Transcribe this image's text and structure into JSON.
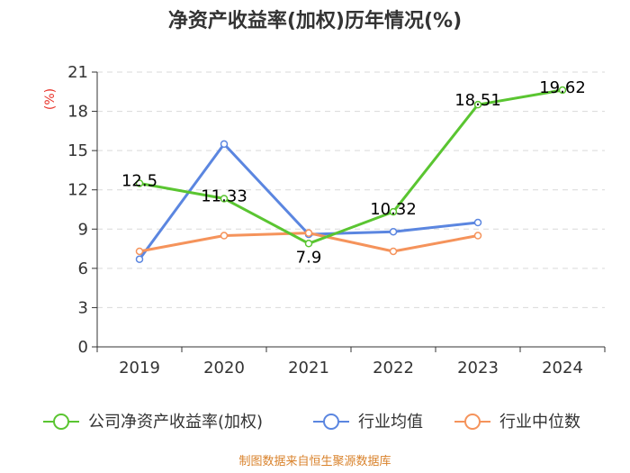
{
  "chart_data": {
    "type": "line",
    "title": "净资产收益率(加权)历年情况(%)",
    "ylabel": "(%)",
    "xlabel": "",
    "categories": [
      "2019",
      "2020",
      "2021",
      "2022",
      "2023",
      "2024"
    ],
    "ylim": [
      0,
      21
    ],
    "yticks": [
      0,
      3,
      6,
      9,
      12,
      15,
      18,
      21
    ],
    "series": [
      {
        "name": "公司净资产收益率(加权)",
        "color": "#5ac531",
        "values": [
          12.5,
          11.33,
          7.9,
          10.32,
          18.51,
          19.62
        ],
        "labels": [
          "12.5",
          "11.33",
          "7.9",
          "10.32",
          "18.51",
          "19.62"
        ]
      },
      {
        "name": "行业均值",
        "color": "#5b86e0",
        "values": [
          6.7,
          15.5,
          8.6,
          8.8,
          9.5,
          null
        ]
      },
      {
        "name": "行业中位数",
        "color": "#f5935b",
        "values": [
          7.3,
          8.5,
          8.7,
          7.3,
          8.5,
          null
        ]
      }
    ],
    "legend_position": "bottom",
    "grid": "horizontal-dashed"
  },
  "source": "制图数据来自恒生聚源数据库"
}
